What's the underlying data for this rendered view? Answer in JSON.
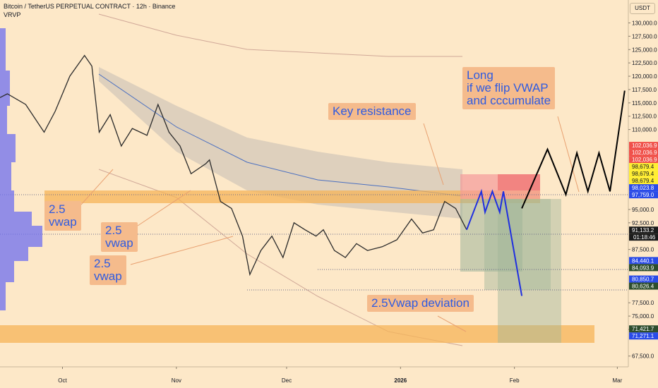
{
  "chart_data": {
    "type": "line",
    "title": "Bitcoin / TetherUS PERPETUAL CONTRACT · 12h · Binance",
    "subtitle": "VRVP",
    "y_axis_label": "USDT",
    "xlim": [
      -17,
      154
    ],
    "xticks": [
      {
        "value": 0,
        "label": "Oct"
      },
      {
        "value": 31,
        "label": "Nov"
      },
      {
        "value": 61,
        "label": "Dec"
      },
      {
        "value": 92,
        "label": "2026"
      },
      {
        "value": 123,
        "label": "Feb"
      },
      {
        "value": 151,
        "label": "Mar"
      }
    ],
    "ylim": [
      65480,
      134300
    ],
    "yticks": [
      {
        "value": 130000,
        "label": "130,000.0"
      },
      {
        "value": 127500,
        "label": "127,500.0"
      },
      {
        "value": 125000,
        "label": "125,000.0"
      },
      {
        "value": 122500,
        "label": "122,500.0"
      },
      {
        "value": 120000,
        "label": "120,000.0"
      },
      {
        "value": 117500,
        "label": "117,500.0"
      },
      {
        "value": 115000,
        "label": "115,000.0"
      },
      {
        "value": 112500,
        "label": "112,500.0"
      },
      {
        "value": 110000,
        "label": "110,000.0"
      },
      {
        "value": 95000,
        "label": "95,000.0"
      },
      {
        "value": 92500,
        "label": "92,500.0"
      },
      {
        "value": 87500,
        "label": "87,500.0"
      },
      {
        "value": 77500,
        "label": "77,500.0"
      },
      {
        "value": 75000,
        "label": "75,000.0"
      },
      {
        "value": 72500,
        "label": "72,500.0"
      },
      {
        "value": 67500,
        "label": "67,500.0"
      }
    ],
    "series": [
      {
        "color": "#2b2b2b",
        "x": [
          -17,
          -15,
          -10,
          -5,
          -2,
          2,
          6,
          8,
          10,
          13,
          16,
          19,
          23,
          26,
          29,
          32,
          35,
          39,
          40,
          43,
          46,
          49,
          51,
          54,
          57,
          60,
          63,
          66,
          69,
          71,
          74,
          77,
          80,
          83,
          87,
          91,
          95,
          98,
          101,
          104,
          107,
          110
        ],
        "values": [
          116000,
          116700,
          114700,
          109500,
          113400,
          120000,
          123900,
          121900,
          109500,
          112800,
          106900,
          110200,
          108900,
          114700,
          109500,
          106900,
          101700,
          103600,
          104300,
          96500,
          95200,
          90000,
          82800,
          87300,
          90000,
          86000,
          92500,
          91200,
          90000,
          91200,
          87300,
          86000,
          88600,
          87300,
          88000,
          89300,
          93200,
          90600,
          91200,
          96500,
          95200,
          91200
        ]
      },
      {
        "color": "#1f2fe0",
        "x": [
          110,
          114,
          115,
          117,
          119,
          120,
          125
        ],
        "values": [
          91200,
          98400,
          94500,
          98400,
          94500,
          98400,
          78800
        ]
      },
      {
        "color": "#000000",
        "x": [
          125,
          132,
          137,
          140,
          143,
          146,
          149,
          153
        ],
        "values": [
          95200,
          106300,
          97800,
          105600,
          98400,
          105600,
          98400,
          117300
        ]
      }
    ],
    "price_tags": [
      {
        "value": 102036.9,
        "label": "102,036.9",
        "color": "#f0504a"
      },
      {
        "value": 102036.9,
        "label": "102,036.9",
        "color": "#f0504a"
      },
      {
        "value": 102036.9,
        "label": "102,036.9",
        "color": "#f0504a"
      },
      {
        "value": 98679.4,
        "label": "98,679.4",
        "color": "#ffee33"
      },
      {
        "value": 98679.4,
        "label": "98,679.4",
        "color": "#ffee33"
      },
      {
        "value": 98679.4,
        "label": "98,679.4",
        "color": "#ffee33"
      },
      {
        "value": 98023.8,
        "label": "98,023.8",
        "color": "#2a4be8"
      },
      {
        "value": 97759.0,
        "label": "97,759.0",
        "color": "#2a4be8"
      },
      {
        "value": 91133.2,
        "label": "91,133.2",
        "color": "#1b1b1b"
      },
      {
        "value": 84440.1,
        "label": "84,440.1",
        "color": "#2a4be8"
      },
      {
        "value": 84093.9,
        "label": "84,093.9",
        "color": "#2d4d2d"
      },
      {
        "value": 80850.7,
        "label": "80,850.7",
        "color": "#2a4be8"
      },
      {
        "value": 80626.4,
        "label": "80,626.4",
        "color": "#2d4d2d"
      },
      {
        "value": 71421.7,
        "label": "71,421.7",
        "color": "#2d4d2d"
      },
      {
        "value": 71271.1,
        "label": "71,271.1",
        "color": "#2a4be8"
      }
    ],
    "countdown": "01:18:46",
    "annotations": [
      "Key resistance",
      "Long\nif we flip VWAP\nand cccumulate",
      "2.5\nvwap",
      "2.5\nvwap",
      "2.5\nvwap",
      "2.5Vwap deviation"
    ]
  }
}
